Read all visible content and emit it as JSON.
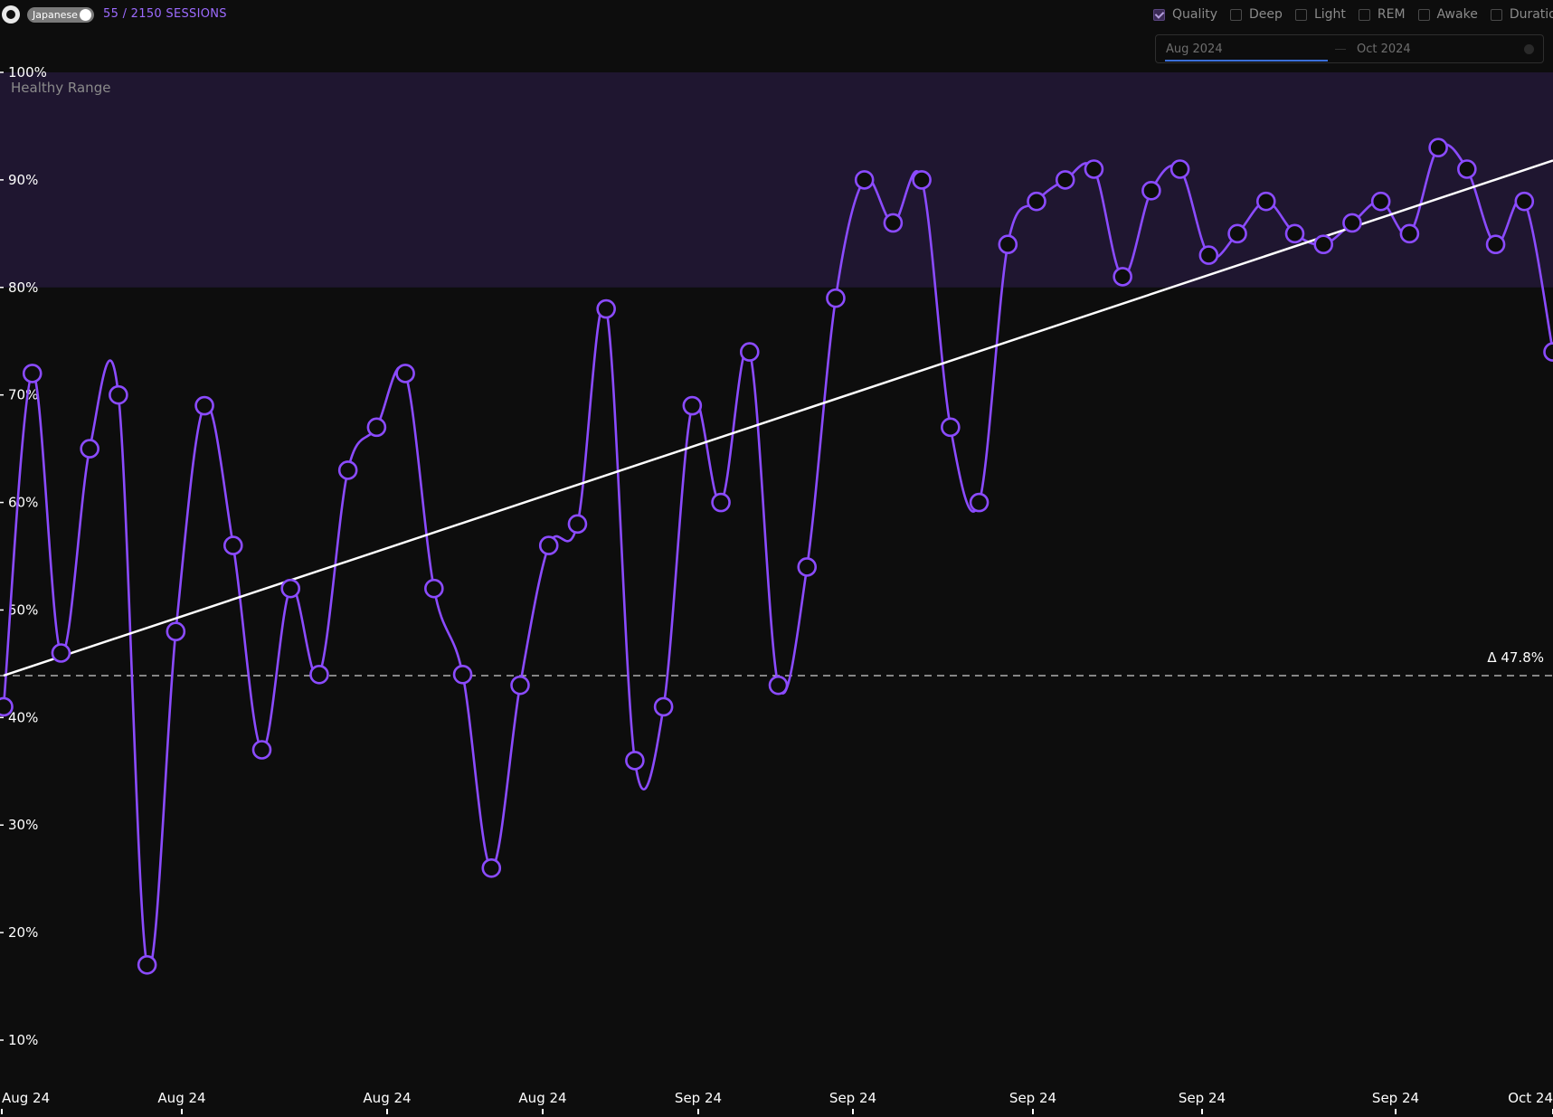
{
  "header": {
    "github_icon": "github-icon",
    "language_label": "Japanese",
    "sessions_label": "55 / 2150 SESSIONS"
  },
  "filters": [
    {
      "label": "Quality",
      "checked": true
    },
    {
      "label": "Deep",
      "checked": false
    },
    {
      "label": "Light",
      "checked": false
    },
    {
      "label": "REM",
      "checked": false
    },
    {
      "label": "Awake",
      "checked": false
    },
    {
      "label": "Duration",
      "checked": false
    }
  ],
  "date_range": {
    "start": "Aug 2024",
    "end": "Oct 2024"
  },
  "colors": {
    "line": "#8b4bff",
    "band": "#1f1630",
    "trend": "#ffffff",
    "background": "#0d0d0d"
  },
  "chart_data": {
    "type": "line",
    "ylim": [
      0,
      100
    ],
    "y_ticks": [
      "10%",
      "20%",
      "30%",
      "40%",
      "50%",
      "60%",
      "70%",
      "80%",
      "90%",
      "100%"
    ],
    "x_tick_labels": [
      "Aug 24",
      "Aug 24",
      "Aug 24",
      "Aug 24",
      "Sep 24",
      "Sep 24",
      "Sep 24",
      "Sep 24",
      "Sep 24",
      "Oct 24"
    ],
    "band": {
      "label": "Healthy Range",
      "from": 80,
      "to": 100
    },
    "reference": {
      "label": "Δ 47.8%",
      "value": 43.9
    },
    "trend": {
      "start": 43.9,
      "end": 91.8
    },
    "series": [
      {
        "values": [
          41,
          72,
          46,
          65,
          70,
          17,
          48,
          69,
          56,
          37,
          52,
          44,
          63,
          67,
          72,
          52,
          44,
          26,
          43,
          56,
          58,
          78,
          36,
          41,
          69,
          60,
          74,
          43,
          54,
          79,
          90,
          86,
          90,
          67,
          60,
          84,
          88,
          90,
          91,
          81,
          89,
          91,
          83,
          85,
          88,
          85,
          84,
          86,
          88,
          85,
          93,
          91,
          84,
          88,
          74
        ]
      }
    ]
  }
}
